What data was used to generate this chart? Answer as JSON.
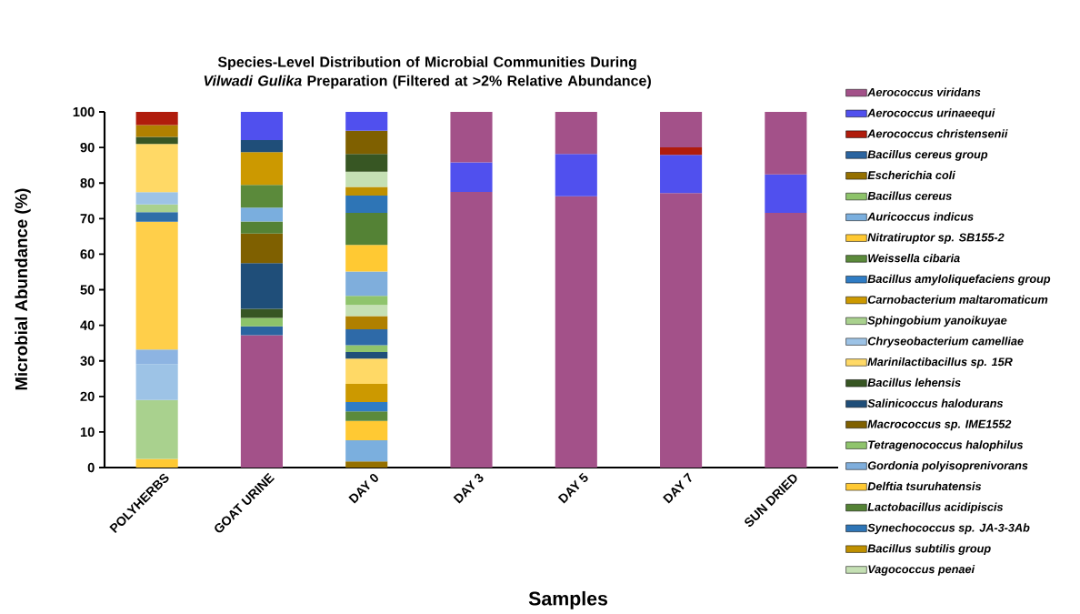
{
  "chart_data": {
    "type": "bar",
    "stacked": true,
    "legend": "right",
    "title": "Species-Level Distribution of Microbial Communities During *Vilwadi Gulika* Preparation (Filtered at >2% Relative Abundance)",
    "xlabel": "Samples",
    "ylabel": "Microbial Abundance (%)",
    "categories": [
      "POLYHERBS",
      "GOAT URINE",
      "DAY 0",
      "DAY 3",
      "DAY 5",
      "DAY 7",
      "SUN DRIED"
    ],
    "ylim": [
      0,
      100
    ],
    "yticks": [
      0,
      10,
      20,
      30,
      40,
      50,
      60,
      70,
      80,
      90,
      100
    ],
    "series": [
      {
        "name": "Aerococcus viridans",
        "color": "#a35189",
        "values": [
          null,
          37.2,
          null,
          77.5,
          76.3,
          77.2,
          71.6
        ]
      },
      {
        "name": "Aerococcus urinaeequi",
        "color": "#5050ee",
        "values": [
          null,
          null,
          null,
          8.3,
          11.9,
          10.7,
          10.8
        ]
      },
      {
        "name": "Aerococcus christensenii",
        "color": "#b01c0c",
        "values": [
          null,
          null,
          null,
          null,
          null,
          2.1,
          null
        ]
      },
      {
        "name": "Bacillus cereus group",
        "color": "#2a64a0",
        "values": [
          null,
          2.5,
          null,
          null,
          null,
          null,
          null
        ]
      },
      {
        "name": "Escherichia coli",
        "color": "#957000",
        "values": [
          null,
          null,
          1.7,
          null,
          null,
          null,
          null
        ]
      },
      {
        "name": "Bacillus cereus",
        "color": "#8dc36a",
        "values": [
          null,
          2.4,
          null,
          null,
          null,
          null,
          null
        ]
      },
      {
        "name": "Auricoccus indicus",
        "color": "#7bafde",
        "values": [
          null,
          null,
          6.0,
          null,
          null,
          null,
          null
        ]
      },
      {
        "name": "Nitratiruptor sp. SB155-2",
        "color": "#ffc933",
        "values": [
          null,
          null,
          5.4,
          null,
          null,
          null,
          null
        ]
      },
      {
        "name": "Weissella cibaria",
        "color": "#5b8a3b",
        "values": [
          null,
          null,
          2.7,
          null,
          null,
          null,
          null
        ]
      },
      {
        "name": "Bacillus amyloliquefaciens group",
        "color": "#2f7cc4",
        "values": [
          null,
          null,
          2.6,
          null,
          null,
          null,
          null
        ]
      },
      {
        "name": "Carnobacterium maltaromaticum",
        "color": "#cc9900",
        "values": [
          null,
          null,
          5.1,
          null,
          null,
          null,
          null
        ]
      },
      {
        "color": "#ffc933",
        "values": [
          2.4,
          null,
          null,
          null,
          null,
          null,
          null
        ]
      },
      {
        "color": "#a9d18e",
        "values": [
          16.6,
          null,
          null,
          null,
          null,
          null,
          null
        ]
      },
      {
        "color": "#9dc3e6",
        "values": [
          10.1,
          null,
          null,
          null,
          null,
          null,
          null
        ]
      },
      {
        "color": "#8db4e2",
        "values": [
          4.1,
          null,
          null,
          null,
          null,
          null,
          null
        ]
      },
      {
        "color": "#ffcf4a",
        "values": [
          35.9,
          null,
          null,
          null,
          null,
          null,
          null
        ]
      },
      {
        "color": "#2e6ea8",
        "values": [
          2.7,
          null,
          null,
          null,
          null,
          null,
          null
        ]
      },
      {
        "name": "Sphingobium yanoikuyae",
        "color": "#a9d18e",
        "values": [
          2.2,
          null,
          null,
          null,
          null,
          null,
          null
        ]
      },
      {
        "name": "Chryseobacterium camelliae",
        "color": "#9dc3e6",
        "values": [
          3.4,
          null,
          null,
          null,
          null,
          null,
          null
        ]
      },
      {
        "name": "Marinilactibacillus sp. 15R",
        "color": "#ffd966",
        "values": [
          null,
          null,
          7.1,
          null,
          null,
          null,
          null
        ]
      },
      {
        "name": "Bacillus lehensis",
        "color": "#375623",
        "values": [
          null,
          2.5,
          null,
          null,
          null,
          null,
          null
        ]
      },
      {
        "name": "Salinicoccus halodurans",
        "color": "#1f4e79",
        "values": [
          null,
          12.9,
          null,
          null,
          null,
          null,
          null
        ]
      },
      {
        "name": "Macrococcus sp. IME1552",
        "color": "#7f6000",
        "values": [
          null,
          8.3,
          null,
          null,
          null,
          null,
          null
        ]
      },
      {
        "color": "#1f4e79",
        "values": [
          null,
          null,
          1.9,
          null,
          null,
          null,
          null
        ]
      },
      {
        "name": "Tetragenococcus halophilus",
        "color": "#8fc46c",
        "values": [
          null,
          null,
          1.9,
          null,
          null,
          null,
          null
        ]
      },
      {
        "color": "#2e6aa8",
        "values": [
          null,
          null,
          4.5,
          null,
          null,
          null,
          null
        ]
      },
      {
        "color": "#b08000",
        "values": [
          null,
          null,
          3.7,
          null,
          null,
          null,
          null
        ]
      },
      {
        "color": "#c5e0b4",
        "values": [
          null,
          null,
          3.1,
          null,
          null,
          null,
          null
        ]
      },
      {
        "color": "#8fc46c",
        "values": [
          null,
          null,
          2.6,
          null,
          null,
          null,
          null
        ]
      },
      {
        "name": "Gordonia polyisoprenivorans",
        "color": "#7faedc",
        "values": [
          null,
          null,
          6.8,
          null,
          null,
          null,
          null
        ]
      },
      {
        "name": "Delftia tsuruhatensis",
        "color": "#ffc933",
        "values": [
          null,
          null,
          7.5,
          null,
          null,
          null,
          null
        ]
      },
      {
        "name": "Lactobacillus acidipiscis",
        "color": "#548235",
        "values": [
          null,
          null,
          9.0,
          null,
          null,
          null,
          null
        ]
      },
      {
        "name": "Synechococcus sp. JA-3-3Ab",
        "color": "#2e75b6",
        "values": [
          null,
          null,
          4.9,
          null,
          null,
          null,
          null
        ]
      },
      {
        "name": "Bacillus subtilis group",
        "color": "#bf9000",
        "values": [
          null,
          null,
          2.4,
          null,
          null,
          null,
          null
        ]
      },
      {
        "name": "Vagococcus penaei",
        "color": "#c5e0b4",
        "values": [
          null,
          null,
          4.3,
          null,
          null,
          null,
          null
        ]
      },
      {
        "color": "#ffd966",
        "values": [
          13.6,
          null,
          null,
          null,
          null,
          null,
          null
        ]
      },
      {
        "color": "#375623",
        "values": [
          2.0,
          null,
          null,
          null,
          null,
          null,
          null
        ]
      },
      {
        "color": "#b08000",
        "values": [
          3.3,
          null,
          null,
          null,
          null,
          null,
          null
        ]
      },
      {
        "color": "#548235",
        "values": [
          null,
          3.4,
          null,
          null,
          null,
          null,
          null
        ]
      },
      {
        "color": "#7aaede",
        "values": [
          null,
          3.9,
          null,
          null,
          null,
          null,
          null
        ]
      },
      {
        "color": "#5b8a3b",
        "values": [
          null,
          6.4,
          null,
          null,
          null,
          null,
          null
        ]
      },
      {
        "color": "#cc9900",
        "values": [
          null,
          9.2,
          null,
          null,
          null,
          null,
          null
        ]
      },
      {
        "color": "#1f4e79",
        "values": [
          null,
          3.4,
          null,
          null,
          null,
          null,
          null
        ]
      },
      {
        "color": "#375623",
        "values": [
          null,
          null,
          5.0,
          null,
          null,
          null,
          null
        ]
      },
      {
        "color": "#7f6000",
        "values": [
          null,
          null,
          6.5,
          null,
          null,
          null,
          null
        ]
      },
      {
        "color": "#5050ee",
        "values": [
          null,
          7.9,
          5.3,
          null,
          null,
          null,
          null
        ]
      },
      {
        "color": "#b01c0c",
        "values": [
          3.7,
          null,
          null,
          null,
          null,
          null,
          null
        ]
      },
      {
        "color": "#a35189",
        "values": [
          null,
          null,
          null,
          14.2,
          11.8,
          10.0,
          17.6
        ]
      }
    ]
  }
}
